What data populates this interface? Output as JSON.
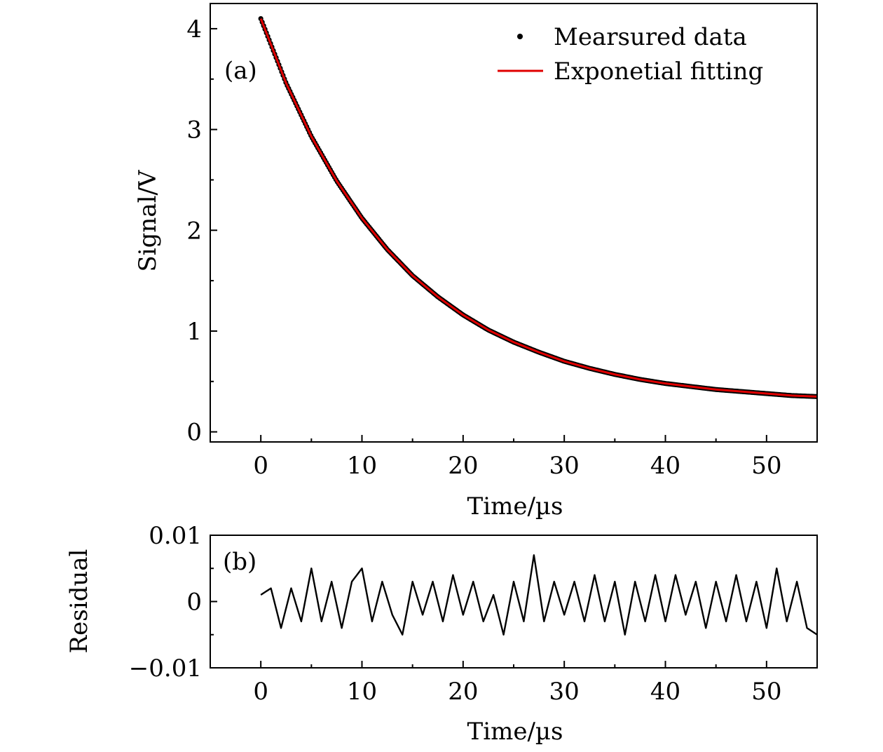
{
  "chart_data": [
    {
      "type": "scatter",
      "panel_label": "(a)",
      "xlabel": "Time/µs",
      "ylabel": "Signal/V",
      "xlim": [
        -5,
        55
      ],
      "ylim": [
        -0.1,
        4.25
      ],
      "xticks": [
        0,
        10,
        20,
        30,
        40,
        50
      ],
      "yticks": [
        0,
        1,
        2,
        3,
        4
      ],
      "grid": false,
      "legend_position": "top-right",
      "series": [
        {
          "name": "Mearsured data",
          "kind": "points",
          "color": "#000000",
          "x": [
            0,
            2.5,
            5,
            7.5,
            10,
            12.5,
            15,
            17.5,
            20,
            22.5,
            25,
            27.5,
            30,
            32.5,
            35,
            37.5,
            40,
            42.5,
            45,
            47.5,
            50,
            52.5,
            55
          ],
          "y": [
            4.1,
            3.46,
            2.93,
            2.49,
            2.12,
            1.81,
            1.55,
            1.34,
            1.16,
            1.01,
            0.89,
            0.79,
            0.7,
            0.63,
            0.57,
            0.52,
            0.48,
            0.45,
            0.42,
            0.4,
            0.38,
            0.36,
            0.35
          ]
        },
        {
          "name": "Exponetial fitting",
          "kind": "line",
          "color": "#e00000",
          "x": [
            0,
            2.5,
            5,
            7.5,
            10,
            12.5,
            15,
            17.5,
            20,
            22.5,
            25,
            27.5,
            30,
            32.5,
            35,
            37.5,
            40,
            42.5,
            45,
            47.5,
            50,
            52.5,
            55
          ],
          "y": [
            4.1,
            3.46,
            2.93,
            2.49,
            2.12,
            1.81,
            1.55,
            1.34,
            1.16,
            1.01,
            0.89,
            0.79,
            0.7,
            0.63,
            0.57,
            0.52,
            0.48,
            0.45,
            0.42,
            0.4,
            0.38,
            0.36,
            0.35
          ]
        }
      ]
    },
    {
      "type": "line",
      "panel_label": "(b)",
      "xlabel": "Time/µs",
      "ylabel": "Residual",
      "xlim": [
        -5,
        55
      ],
      "ylim": [
        -0.01,
        0.01
      ],
      "xticks": [
        0,
        10,
        20,
        30,
        40,
        50
      ],
      "yticks": [
        -0.01,
        0,
        0.01
      ],
      "ytick_labels": [
        "−0.01",
        "0",
        "0.01"
      ],
      "grid": false,
      "series": [
        {
          "color": "#000000",
          "x": [
            0,
            1,
            2,
            3,
            4,
            5,
            6,
            7,
            8,
            9,
            10,
            11,
            12,
            13,
            14,
            15,
            16,
            17,
            18,
            19,
            20,
            21,
            22,
            23,
            24,
            25,
            26,
            27,
            28,
            29,
            30,
            31,
            32,
            33,
            34,
            35,
            36,
            37,
            38,
            39,
            40,
            41,
            42,
            43,
            44,
            45,
            46,
            47,
            48,
            49,
            50,
            51,
            52,
            53,
            54,
            55
          ],
          "y": [
            0.001,
            0.002,
            -0.004,
            0.002,
            -0.003,
            0.005,
            -0.003,
            0.003,
            -0.004,
            0.003,
            0.005,
            -0.003,
            0.003,
            -0.002,
            -0.005,
            0.003,
            -0.002,
            0.003,
            -0.003,
            0.004,
            -0.002,
            0.003,
            -0.003,
            0.001,
            -0.005,
            0.003,
            -0.003,
            0.007,
            -0.003,
            0.003,
            -0.002,
            0.003,
            -0.003,
            0.004,
            -0.003,
            0.003,
            -0.005,
            0.003,
            -0.003,
            0.004,
            -0.003,
            0.004,
            -0.002,
            0.003,
            -0.004,
            0.003,
            -0.003,
            0.004,
            -0.003,
            0.003,
            -0.004,
            0.005,
            -0.003,
            0.003,
            -0.004,
            -0.005
          ]
        }
      ]
    }
  ]
}
